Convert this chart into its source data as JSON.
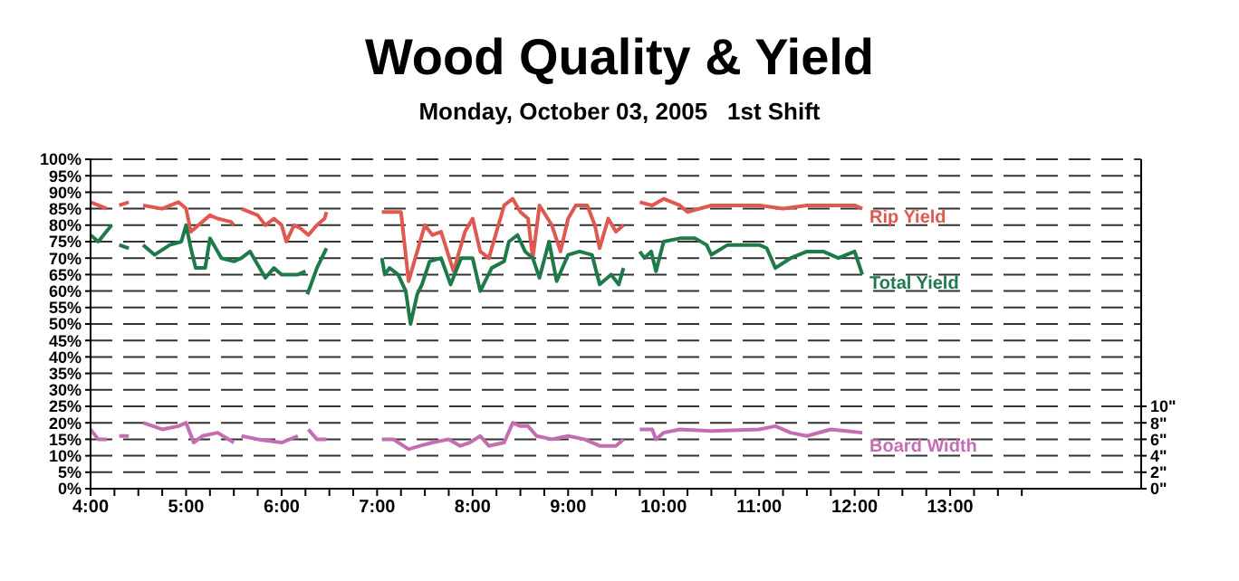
{
  "chart_data": {
    "type": "line",
    "title": "Wood Quality & Yield",
    "subtitle": "Monday, October 03, 2005   1st Shift",
    "xlim": [
      4,
      15
    ],
    "xticks": [
      {
        "value": 4,
        "label": "4:00"
      },
      {
        "value": 4.25,
        "label": null
      },
      {
        "value": 4.5,
        "label": null
      },
      {
        "value": 4.75,
        "label": null
      },
      {
        "value": 5,
        "label": "5:00"
      },
      {
        "value": 5.25,
        "label": null
      },
      {
        "value": 5.5,
        "label": null
      },
      {
        "value": 5.75,
        "label": null
      },
      {
        "value": 6,
        "label": "6:00"
      },
      {
        "value": 6.25,
        "label": null
      },
      {
        "value": 6.5,
        "label": null
      },
      {
        "value": 6.75,
        "label": null
      },
      {
        "value": 7,
        "label": "7:00"
      },
      {
        "value": 7.25,
        "label": null
      },
      {
        "value": 7.5,
        "label": null
      },
      {
        "value": 7.75,
        "label": null
      },
      {
        "value": 8,
        "label": "8:00"
      },
      {
        "value": 8.25,
        "label": null
      },
      {
        "value": 8.5,
        "label": null
      },
      {
        "value": 8.75,
        "label": null
      },
      {
        "value": 9,
        "label": "9:00"
      },
      {
        "value": 9.25,
        "label": null
      },
      {
        "value": 9.5,
        "label": null
      },
      {
        "value": 9.75,
        "label": null
      },
      {
        "value": 10,
        "label": "10:00"
      },
      {
        "value": 10.25,
        "label": null
      },
      {
        "value": 10.5,
        "label": null
      },
      {
        "value": 10.75,
        "label": null
      },
      {
        "value": 11,
        "label": "11:00"
      },
      {
        "value": 11.25,
        "label": null
      },
      {
        "value": 11.5,
        "label": null
      },
      {
        "value": 11.75,
        "label": null
      },
      {
        "value": 12,
        "label": "12:00"
      },
      {
        "value": 12.25,
        "label": null
      },
      {
        "value": 12.5,
        "label": null
      },
      {
        "value": 12.75,
        "label": null
      },
      {
        "value": 13,
        "label": "13:00"
      },
      {
        "value": 13.25,
        "label": null
      },
      {
        "value": 13.5,
        "label": null
      },
      {
        "value": 13.75,
        "label": null
      }
    ],
    "ylim": [
      0,
      100
    ],
    "yticks": [
      {
        "value": 0,
        "label": "0%"
      },
      {
        "value": 5,
        "label": "5%"
      },
      {
        "value": 10,
        "label": "10%"
      },
      {
        "value": 15,
        "label": "15%"
      },
      {
        "value": 20,
        "label": "20%"
      },
      {
        "value": 25,
        "label": "25%"
      },
      {
        "value": 30,
        "label": "30%"
      },
      {
        "value": 35,
        "label": "35%"
      },
      {
        "value": 40,
        "label": "40%"
      },
      {
        "value": 45,
        "label": "45%"
      },
      {
        "value": 50,
        "label": "50%"
      },
      {
        "value": 55,
        "label": "55%"
      },
      {
        "value": 60,
        "label": "60%"
      },
      {
        "value": 65,
        "label": "65%"
      },
      {
        "value": 70,
        "label": "70%"
      },
      {
        "value": 75,
        "label": "75%"
      },
      {
        "value": 80,
        "label": "80%"
      },
      {
        "value": 85,
        "label": "85%"
      },
      {
        "value": 90,
        "label": "90%"
      },
      {
        "value": 95,
        "label": "95%"
      },
      {
        "value": 100,
        "label": "100%"
      }
    ],
    "y2lim": [
      0,
      40
    ],
    "y2ticks": [
      {
        "value": 0,
        "label": "0\""
      },
      {
        "value": 2,
        "label": "2\""
      },
      {
        "value": 4,
        "label": "4\""
      },
      {
        "value": 6,
        "label": "6\""
      },
      {
        "value": 8,
        "label": "8\""
      },
      {
        "value": 10,
        "label": "10\""
      }
    ],
    "grid": "y",
    "marker": "none",
    "line_style": "solid",
    "series": [
      {
        "name": "Rip Yield",
        "color": "#e0584f",
        "x": [
          4.0,
          4.17,
          4.2,
          4.3,
          4.4,
          4.45,
          4.55,
          4.75,
          4.92,
          5.0,
          5.05,
          5.13,
          5.25,
          5.33,
          5.47,
          5.5,
          5.55,
          5.58,
          5.75,
          5.83,
          5.92,
          6.0,
          6.05,
          6.13,
          6.2,
          6.28,
          6.37,
          6.45,
          6.47,
          6.6,
          7.05,
          7.25,
          7.33,
          7.42,
          7.5,
          7.58,
          7.67,
          7.8,
          7.92,
          8.0,
          8.08,
          8.17,
          8.33,
          8.42,
          8.5,
          8.58,
          8.63,
          8.7,
          8.83,
          8.92,
          9.0,
          9.08,
          9.2,
          9.28,
          9.33,
          9.42,
          9.5,
          9.58,
          9.65,
          9.75,
          9.88,
          10.0,
          10.17,
          10.25,
          10.5,
          11.0,
          11.25,
          11.5,
          11.75,
          12.0,
          12.08
        ],
        "values": [
          87,
          85,
          null,
          86,
          87,
          null,
          86,
          85,
          87,
          85,
          78,
          80,
          83,
          82,
          81,
          80,
          null,
          85,
          83,
          80,
          82,
          80,
          75,
          80,
          79,
          77,
          80,
          82,
          84,
          null,
          84,
          84,
          63,
          72,
          80,
          77,
          78,
          66,
          78,
          82,
          72,
          70,
          86,
          88,
          84,
          82,
          70,
          86,
          80,
          72,
          82,
          86,
          86,
          80,
          73,
          82,
          78,
          80,
          null,
          87,
          86,
          88,
          86,
          84,
          86,
          86,
          85,
          86,
          86,
          86,
          85
        ]
      },
      {
        "name": "Total Yield",
        "color": "#1f7a4a",
        "x": [
          4.0,
          4.08,
          4.22,
          4.25,
          4.3,
          4.4,
          4.45,
          4.55,
          4.67,
          4.83,
          4.95,
          5.0,
          5.05,
          5.1,
          5.2,
          5.25,
          5.37,
          5.5,
          5.58,
          5.67,
          5.83,
          5.92,
          6.0,
          6.17,
          6.25,
          6.26,
          6.27,
          6.37,
          6.47,
          6.6,
          7.05,
          7.08,
          7.13,
          7.22,
          7.3,
          7.35,
          7.42,
          7.47,
          7.55,
          7.67,
          7.77,
          7.88,
          8.0,
          8.08,
          8.2,
          8.33,
          8.38,
          8.47,
          8.55,
          8.63,
          8.7,
          8.8,
          8.88,
          9.0,
          9.12,
          9.25,
          9.33,
          9.45,
          9.53,
          9.58,
          9.65,
          9.75,
          9.8,
          9.87,
          9.92,
          10.0,
          10.17,
          10.33,
          10.45,
          10.5,
          10.67,
          11.0,
          11.08,
          11.17,
          11.33,
          11.5,
          11.67,
          11.83,
          12.0,
          12.08
        ],
        "values": [
          77,
          75,
          80,
          null,
          74,
          73,
          null,
          74,
          71,
          74,
          75,
          80,
          73,
          67,
          67,
          76,
          70,
          69,
          70,
          72,
          64,
          67,
          65,
          65,
          66,
          null,
          59,
          67,
          73,
          null,
          70,
          65,
          67,
          65,
          60,
          50,
          59,
          62,
          69,
          70,
          62,
          70,
          70,
          60,
          67,
          69,
          75,
          77,
          72,
          70,
          64,
          75,
          63,
          71,
          72,
          71,
          62,
          65,
          62,
          67,
          null,
          72,
          70,
          72,
          66,
          75,
          76,
          76,
          74,
          71,
          74,
          74,
          73,
          67,
          70,
          72,
          72,
          70,
          72,
          65
        ]
      },
      {
        "name": "Board Width",
        "color": "#c46db0",
        "axis": "y2",
        "x": [
          4.0,
          4.08,
          4.17,
          4.2,
          4.3,
          4.4,
          4.45,
          4.55,
          4.75,
          4.92,
          5.0,
          5.08,
          5.17,
          5.33,
          5.5,
          5.55,
          5.58,
          5.75,
          6.0,
          6.17,
          6.22,
          6.28,
          6.37,
          6.47,
          6.6,
          7.05,
          7.17,
          7.33,
          7.45,
          7.58,
          7.75,
          7.87,
          7.97,
          8.08,
          8.17,
          8.33,
          8.42,
          8.5,
          8.58,
          8.67,
          8.83,
          9.0,
          9.17,
          9.33,
          9.5,
          9.58,
          9.65,
          9.75,
          9.88,
          9.92,
          10.0,
          10.17,
          10.5,
          11.0,
          11.17,
          11.33,
          11.5,
          11.75,
          12.08
        ],
        "values": [
          7.2,
          6,
          6,
          null,
          6.4,
          6.4,
          null,
          8,
          7.2,
          7.6,
          8,
          5.6,
          6.4,
          6.8,
          5.6,
          null,
          6.4,
          6,
          5.6,
          6.4,
          null,
          7.2,
          6,
          6,
          null,
          6,
          6,
          4.8,
          5.2,
          5.6,
          6,
          5.2,
          5.6,
          6.4,
          5.2,
          5.6,
          8,
          7.6,
          7.6,
          6.4,
          6,
          6.4,
          6,
          5.2,
          5.2,
          6,
          null,
          7.2,
          7.2,
          6,
          6.8,
          7.2,
          7,
          7.2,
          7.6,
          6.8,
          6.4,
          7.2,
          6.8
        ]
      }
    ]
  }
}
